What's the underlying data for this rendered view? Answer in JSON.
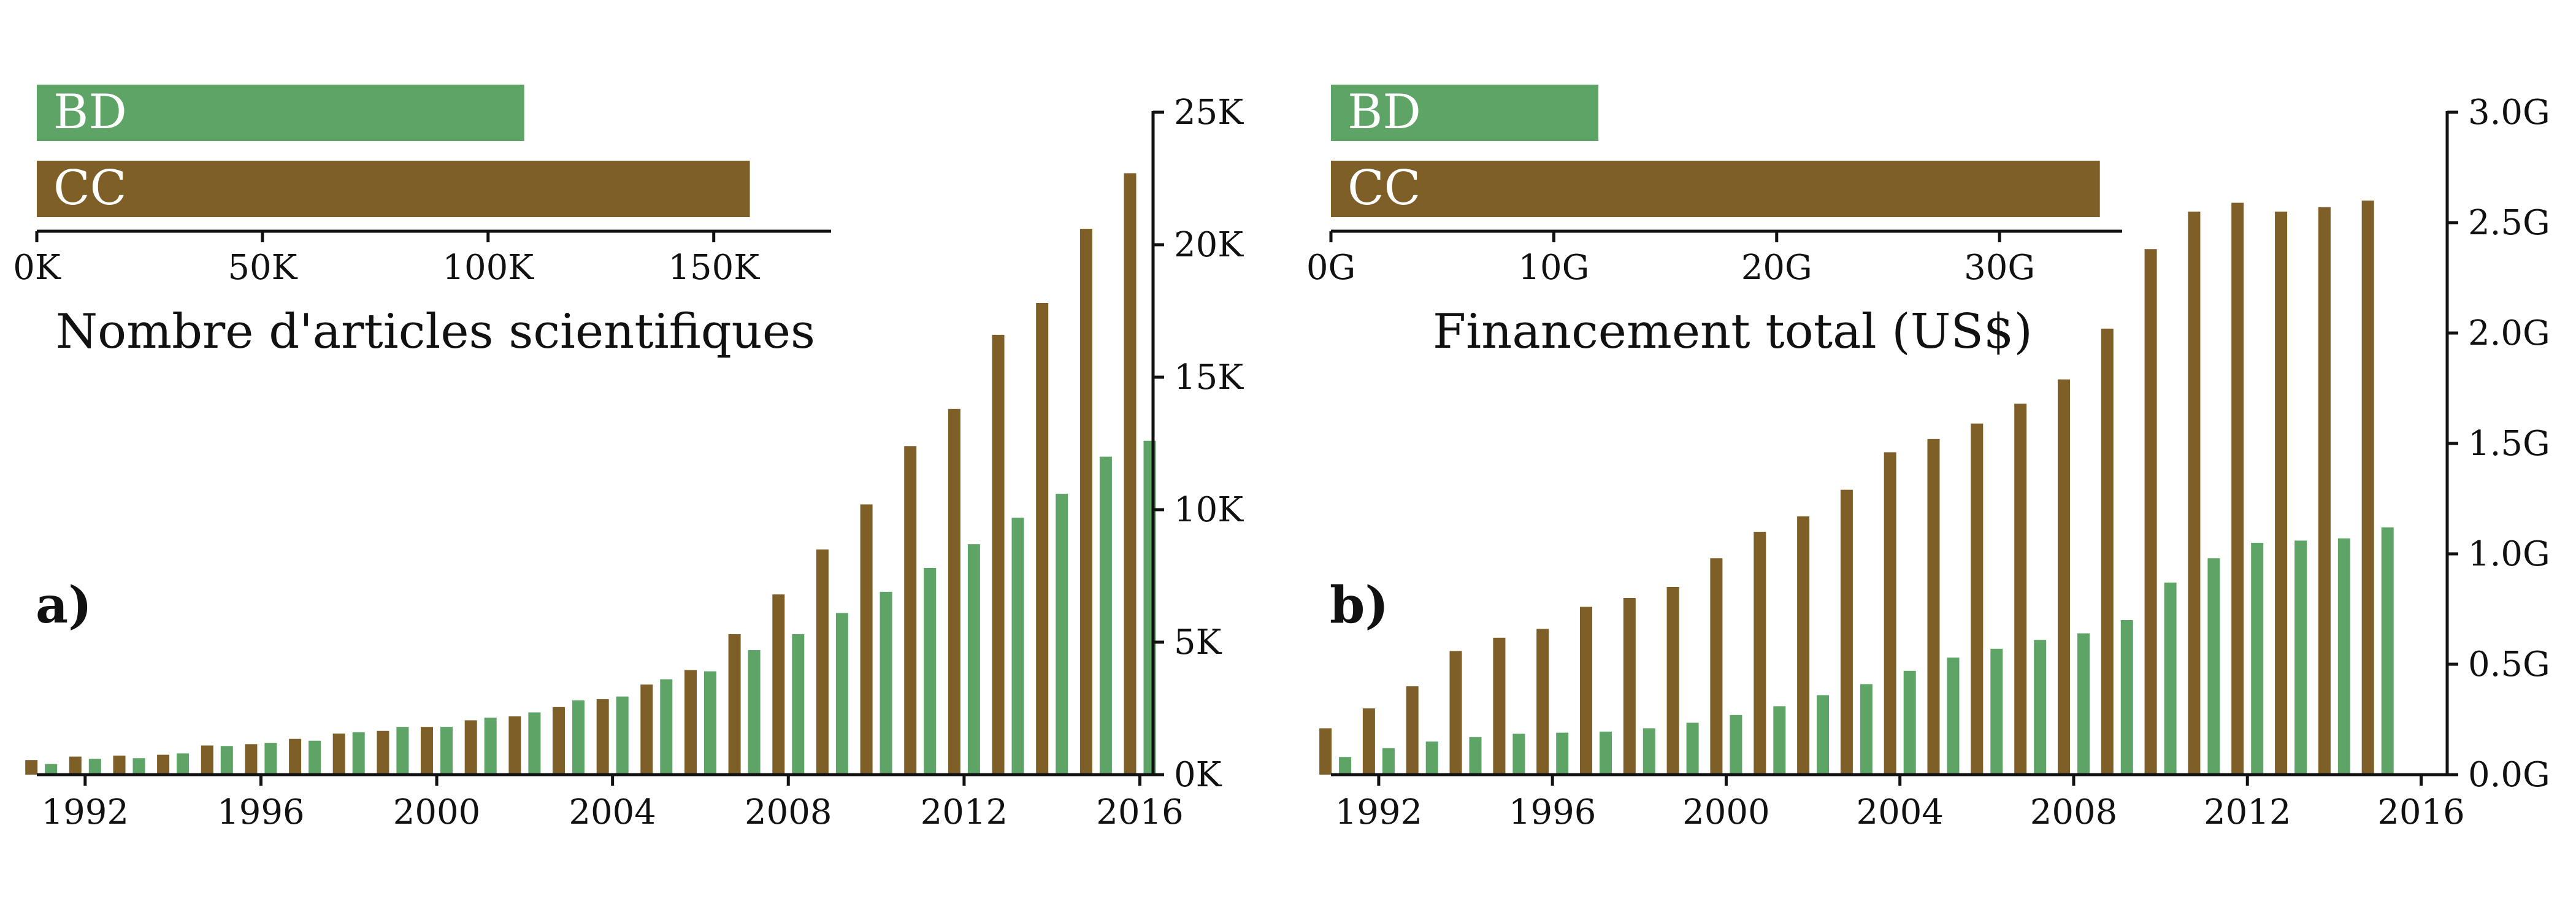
{
  "colors": {
    "cc": "#7d5f27",
    "bd": "#5ea467"
  },
  "chart_data": [
    {
      "type": "bar",
      "panel_label": "a)",
      "x": [
        1991,
        1992,
        1993,
        1994,
        1995,
        1996,
        1997,
        1998,
        1999,
        2000,
        2001,
        2002,
        2003,
        2004,
        2005,
        2006,
        2007,
        2008,
        2009,
        2010,
        2011,
        2012,
        2013,
        2014,
        2015,
        2016
      ],
      "xticks": [
        1992,
        1996,
        2000,
        2004,
        2008,
        2012,
        2016
      ],
      "xlim": [
        1990.9,
        2016.3
      ],
      "ylim": [
        0,
        25000
      ],
      "yticks": [
        0,
        5000,
        10000,
        15000,
        20000,
        25000
      ],
      "ytick_labels": [
        "0K",
        "5K",
        "10K",
        "15K",
        "20K",
        "25K"
      ],
      "series": [
        {
          "name": "CC",
          "values": [
            550,
            680,
            720,
            750,
            1100,
            1150,
            1350,
            1550,
            1650,
            1800,
            2050,
            2200,
            2550,
            2850,
            3400,
            3950,
            5300,
            6800,
            8500,
            10200,
            12400,
            13800,
            16600,
            17800,
            20600,
            22700
          ]
        },
        {
          "name": "BD",
          "values": [
            400,
            600,
            620,
            800,
            1080,
            1200,
            1280,
            1600,
            1800,
            1800,
            2150,
            2350,
            2800,
            2950,
            3600,
            3900,
            4700,
            5300,
            6100,
            6900,
            7800,
            8700,
            9700,
            10600,
            12000,
            12600
          ]
        }
      ],
      "inset": {
        "type": "bar",
        "orientation": "horizontal",
        "categories": [
          "BD",
          "CC"
        ],
        "values": [
          108000,
          158000
        ],
        "xlim": [
          0,
          176000
        ],
        "xticks": [
          0,
          50000,
          100000,
          150000
        ],
        "xtick_labels": [
          "0K",
          "50K",
          "100K",
          "150K"
        ],
        "xlabel": "Nombre d'articles scientifiques"
      }
    },
    {
      "type": "bar",
      "panel_label": "b)",
      "x": [
        1991,
        1992,
        1993,
        1994,
        1995,
        1996,
        1997,
        1998,
        1999,
        2000,
        2001,
        2002,
        2003,
        2004,
        2005,
        2006,
        2007,
        2008,
        2009,
        2010,
        2011,
        2012,
        2013,
        2014,
        2015
      ],
      "xticks": [
        1992,
        1996,
        2000,
        2004,
        2008,
        2012,
        2016
      ],
      "xlim": [
        1990.9,
        2016.6
      ],
      "ylim": [
        0,
        3000000000
      ],
      "yticks": [
        0,
        500000000,
        1000000000,
        1500000000,
        2000000000,
        2500000000,
        3000000000
      ],
      "ytick_labels": [
        "0.0G",
        "0.5G",
        "1.0G",
        "1.5G",
        "2.0G",
        "2.5G",
        "3.0G"
      ],
      "series": [
        {
          "name": "CC",
          "values": [
            210000000,
            300000000,
            400000000,
            560000000,
            620000000,
            660000000,
            760000000,
            800000000,
            850000000,
            980000000,
            1100000000,
            1170000000,
            1290000000,
            1460000000,
            1520000000,
            1590000000,
            1680000000,
            1790000000,
            2020000000,
            2380000000,
            2550000000,
            2590000000,
            2550000000,
            2570000000,
            2600000000
          ]
        },
        {
          "name": "BD",
          "values": [
            80000000,
            120000000,
            150000000,
            170000000,
            185000000,
            190000000,
            195000000,
            210000000,
            235000000,
            270000000,
            310000000,
            360000000,
            410000000,
            470000000,
            530000000,
            570000000,
            610000000,
            640000000,
            700000000,
            870000000,
            980000000,
            1050000000,
            1060000000,
            1070000000,
            1120000000
          ]
        }
      ],
      "inset": {
        "type": "bar",
        "orientation": "horizontal",
        "categories": [
          "BD",
          "CC"
        ],
        "values": [
          12000000000,
          34500000000
        ],
        "xlim": [
          0,
          35500000000
        ],
        "xticks": [
          0,
          10000000000,
          20000000000,
          30000000000
        ],
        "xtick_labels": [
          "0G",
          "10G",
          "20G",
          "30G"
        ],
        "xlabel": "Financement total (US$)"
      }
    }
  ]
}
